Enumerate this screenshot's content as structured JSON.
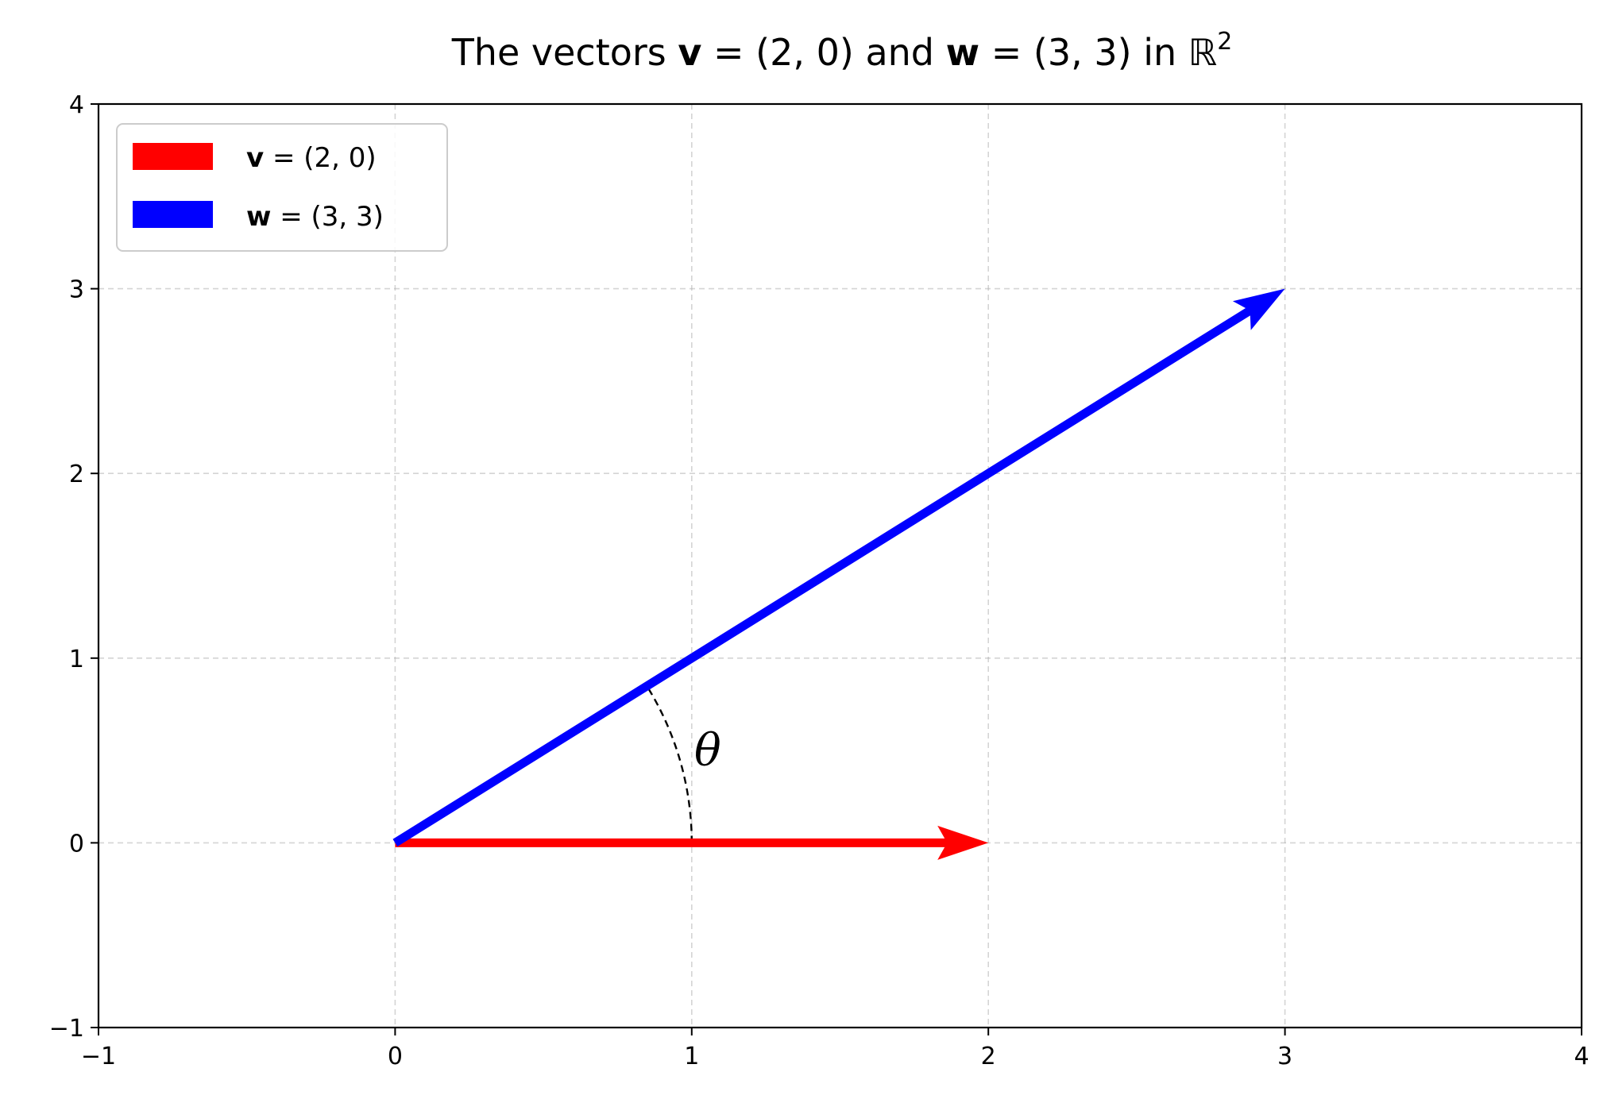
{
  "chart_data": {
    "type": "vector",
    "title": {
      "prefix": "The vectors ",
      "v_symbol": "v",
      "v_expr": " = (2, 0) and ",
      "w_symbol": "w",
      "w_expr": " = (3, 3) in ",
      "space_symbol": "ℝ",
      "space_exp": "2"
    },
    "xlim": [
      -1,
      4
    ],
    "ylim": [
      -1,
      4
    ],
    "xticks": [
      -1,
      0,
      1,
      2,
      3,
      4
    ],
    "yticks": [
      -1,
      0,
      1,
      2,
      3,
      4
    ],
    "xtick_labels": [
      "−1",
      "0",
      "1",
      "2",
      "3",
      "4"
    ],
    "ytick_labels": [
      "−1",
      "0",
      "1",
      "2",
      "3",
      "4"
    ],
    "grid": true,
    "legend_position": "top-left",
    "vectors": [
      {
        "symbol": "v",
        "label": " = (2, 0)",
        "tail": [
          0,
          0
        ],
        "head": [
          2,
          0
        ],
        "color": "#ff0000"
      },
      {
        "symbol": "w",
        "label": " = (3, 3)",
        "tail": [
          0,
          0
        ],
        "head": [
          3,
          3
        ],
        "color": "#0000ff"
      }
    ],
    "angle_annotation": {
      "label": "θ",
      "style": "dashed arc"
    }
  }
}
